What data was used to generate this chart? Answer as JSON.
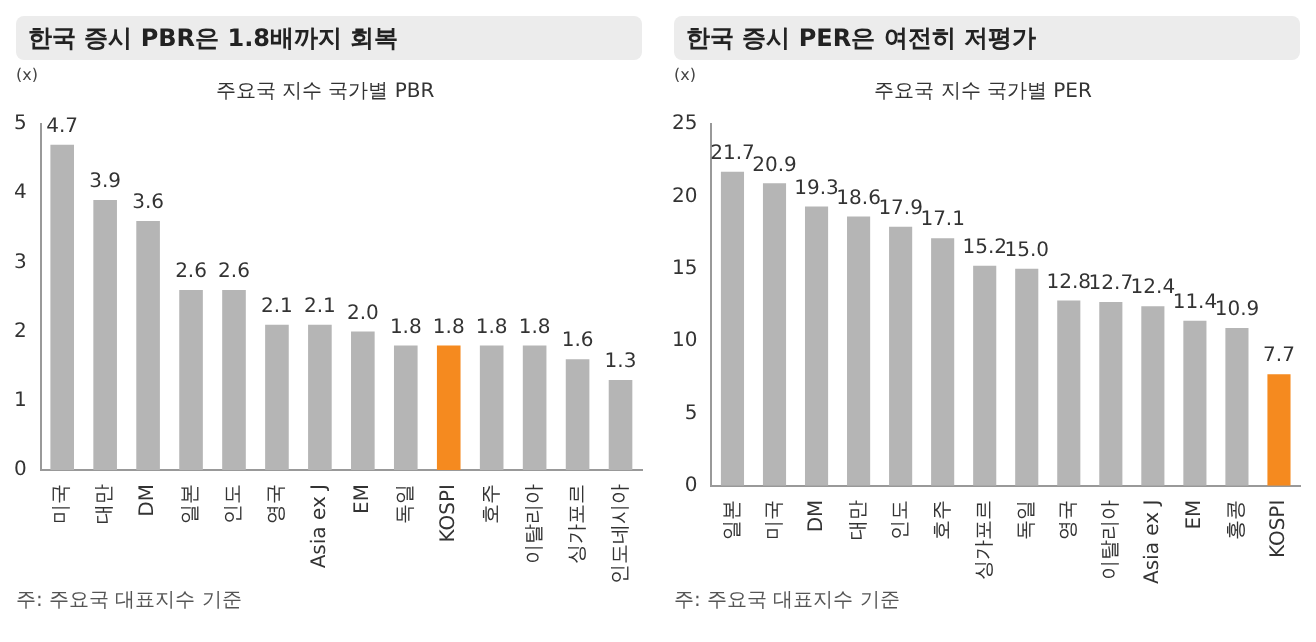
{
  "chart_data": [
    {
      "type": "bar",
      "title": "한국 증시 PBR은 1.8배까지 회복",
      "subtitle": "주요국 지수 국가별 PBR",
      "ylabel": "(x)",
      "categories": [
        "미국",
        "대만",
        "DM",
        "일본",
        "인도",
        "영국",
        "Asia ex J",
        "EM",
        "독일",
        "KOSPI",
        "호주",
        "이탈리아",
        "싱가포르",
        "인도네시아"
      ],
      "values": [
        4.7,
        3.9,
        3.6,
        2.6,
        2.6,
        2.1,
        2.1,
        2.0,
        1.8,
        1.8,
        1.8,
        1.8,
        1.6,
        1.3
      ],
      "value_labels": [
        "4.7",
        "3.9",
        "3.6",
        "2.6",
        "2.6",
        "2.1",
        "2.1",
        "2.0",
        "1.8",
        "1.8",
        "1.8",
        "1.8",
        "1.6",
        "1.3"
      ],
      "colors": [
        "#b5b5b5",
        "#b5b5b5",
        "#b5b5b5",
        "#b5b5b5",
        "#b5b5b5",
        "#b5b5b5",
        "#b5b5b5",
        "#b5b5b5",
        "#b5b5b5",
        "#f58a1f",
        "#b5b5b5",
        "#b5b5b5",
        "#b5b5b5",
        "#b5b5b5"
      ],
      "ylim": [
        0,
        5
      ],
      "yticks": [
        0,
        1,
        2,
        3,
        4,
        5
      ],
      "grid": false,
      "annotations": [
        "주: 주요국 대표지수 기준"
      ]
    },
    {
      "type": "bar",
      "title": "한국 증시 PER은 여전히 저평가",
      "subtitle": "주요국 지수 국가별 PER",
      "ylabel": "(x)",
      "categories": [
        "일본",
        "미국",
        "DM",
        "대만",
        "인도",
        "호주",
        "싱가포르",
        "독일",
        "영국",
        "이탈리아",
        "Asia ex J",
        "EM",
        "홍콩",
        "KOSPI"
      ],
      "values": [
        21.7,
        20.9,
        19.3,
        18.6,
        17.9,
        17.1,
        15.2,
        15.0,
        12.8,
        12.7,
        12.4,
        11.4,
        10.9,
        7.7
      ],
      "value_labels": [
        "21.7",
        "20.9",
        "19.3",
        "18.6",
        "17.9",
        "17.1",
        "15.2",
        "15.0",
        "12.8",
        "12.7",
        "12.4",
        "11.4",
        "10.9",
        "7.7"
      ],
      "colors": [
        "#b5b5b5",
        "#b5b5b5",
        "#b5b5b5",
        "#b5b5b5",
        "#b5b5b5",
        "#b5b5b5",
        "#b5b5b5",
        "#b5b5b5",
        "#b5b5b5",
        "#b5b5b5",
        "#b5b5b5",
        "#b5b5b5",
        "#b5b5b5",
        "#f58a1f"
      ],
      "ylim": [
        0,
        25
      ],
      "yticks": [
        0,
        5,
        10,
        15,
        20,
        25
      ],
      "grid": false,
      "annotations": [
        "주: 주요국 대표지수 기준"
      ]
    }
  ]
}
